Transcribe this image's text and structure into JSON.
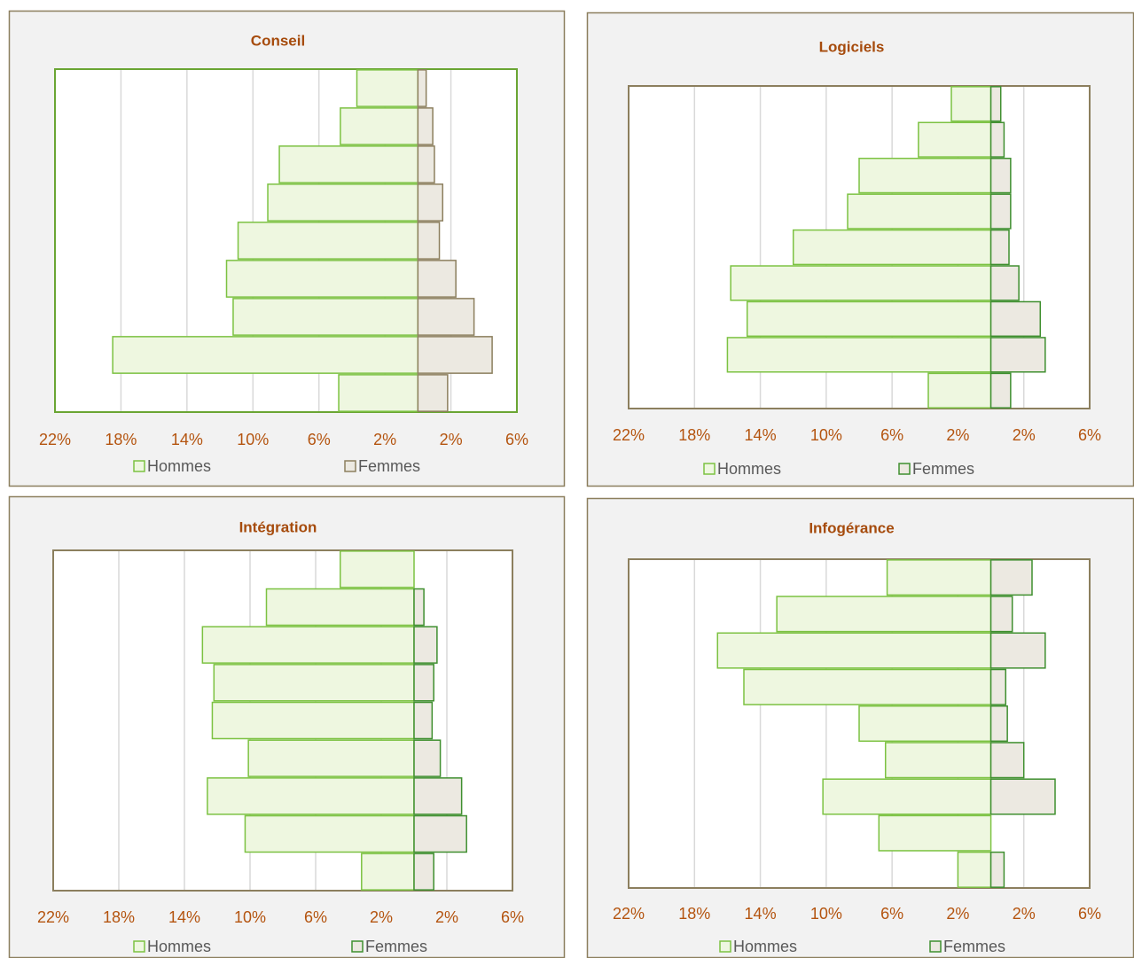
{
  "chart_data": [
    {
      "type": "pyramid",
      "title": "Conseil",
      "categories": [
        null,
        null,
        null,
        null,
        null,
        null,
        null,
        null,
        null
      ],
      "series": [
        {
          "name": "Hommes",
          "color": "#eef7e0",
          "edgecolor": "#7cc242",
          "values": [
            -3.7,
            -4.7,
            -8.4,
            -9.1,
            -10.9,
            -11.6,
            -11.2,
            -18.5,
            -4.8
          ]
        },
        {
          "name": "Femmes",
          "color": "#ece9e1",
          "edgecolor": "#8c7f5e",
          "values": [
            0.5,
            0.9,
            1.0,
            1.5,
            1.3,
            2.3,
            3.4,
            4.5,
            1.8
          ]
        }
      ],
      "xlim": [
        -22,
        6
      ],
      "xticks": [
        {
          "value": -22,
          "label": "22%"
        },
        {
          "value": -18,
          "label": "18%"
        },
        {
          "value": -14,
          "label": "14%"
        },
        {
          "value": -10,
          "label": "10%"
        },
        {
          "value": -6,
          "label": "6%"
        },
        {
          "value": -2,
          "label": "2%"
        },
        {
          "value": 2,
          "label": "2%"
        },
        {
          "value": 6,
          "label": "6%"
        }
      ],
      "grid": true
    },
    {
      "type": "pyramid",
      "title": "Logiciels",
      "categories": [
        null,
        null,
        null,
        null,
        null,
        null,
        null,
        null,
        null
      ],
      "series": [
        {
          "name": "Hommes",
          "color": "#eef7e0",
          "edgecolor": "#7cc242",
          "values": [
            -2.4,
            -4.4,
            -8.0,
            -8.7,
            -12.0,
            -15.8,
            -14.8,
            -16.0,
            -3.8
          ]
        },
        {
          "name": "Femmes",
          "color": "#ece9e1",
          "edgecolor": "#3f8f2f",
          "values": [
            0.6,
            0.8,
            1.2,
            1.2,
            1.1,
            1.7,
            3.0,
            3.3,
            1.2
          ]
        }
      ],
      "xlim": [
        -22,
        6
      ],
      "xticks": [
        {
          "value": -22,
          "label": "22%"
        },
        {
          "value": -18,
          "label": "18%"
        },
        {
          "value": -14,
          "label": "14%"
        },
        {
          "value": -10,
          "label": "10%"
        },
        {
          "value": -6,
          "label": "6%"
        },
        {
          "value": -2,
          "label": "2%"
        },
        {
          "value": 2,
          "label": "2%"
        },
        {
          "value": 6,
          "label": "6%"
        }
      ],
      "grid": true
    },
    {
      "type": "pyramid",
      "title": "Intégration",
      "categories": [
        null,
        null,
        null,
        null,
        null,
        null,
        null,
        null,
        null
      ],
      "series": [
        {
          "name": "Hommes",
          "color": "#eef7e0",
          "edgecolor": "#7cc242",
          "values": [
            -4.5,
            -9.0,
            -12.9,
            -12.2,
            -12.3,
            -10.1,
            -12.6,
            -10.3,
            -3.2
          ]
        },
        {
          "name": "Femmes",
          "color": "#ece9e1",
          "edgecolor": "#3f8f2f",
          "values": [
            0,
            0.6,
            1.4,
            1.2,
            1.1,
            1.6,
            2.9,
            3.2,
            1.2
          ]
        }
      ],
      "xlim": [
        -22,
        6
      ],
      "xticks": [
        {
          "value": -22,
          "label": "22%"
        },
        {
          "value": -18,
          "label": "18%"
        },
        {
          "value": -14,
          "label": "14%"
        },
        {
          "value": -10,
          "label": "10%"
        },
        {
          "value": -6,
          "label": "6%"
        },
        {
          "value": -2,
          "label": "2%"
        },
        {
          "value": 2,
          "label": "2%"
        },
        {
          "value": 6,
          "label": "6%"
        }
      ],
      "grid": true
    },
    {
      "type": "pyramid",
      "title": "Infogérance",
      "categories": [
        null,
        null,
        null,
        null,
        null,
        null,
        null,
        null,
        null
      ],
      "series": [
        {
          "name": "Hommes",
          "color": "#eef7e0",
          "edgecolor": "#7cc242",
          "values": [
            -6.3,
            -13.0,
            -16.6,
            -15.0,
            -8.0,
            -6.4,
            -10.2,
            -6.8,
            -2.0
          ]
        },
        {
          "name": "Femmes",
          "color": "#ece9e1",
          "edgecolor": "#3f8f2f",
          "values": [
            2.5,
            1.3,
            3.3,
            0.9,
            1.0,
            2.0,
            3.9,
            0,
            0.8
          ]
        }
      ],
      "xlim": [
        -22,
        6
      ],
      "xticks": [
        {
          "value": -22,
          "label": "22%"
        },
        {
          "value": -18,
          "label": "18%"
        },
        {
          "value": -14,
          "label": "14%"
        },
        {
          "value": -10,
          "label": "10%"
        },
        {
          "value": -6,
          "label": "6%"
        },
        {
          "value": -2,
          "label": "2%"
        },
        {
          "value": 2,
          "label": "2%"
        },
        {
          "value": 6,
          "label": "6%"
        }
      ],
      "grid": true
    }
  ]
}
